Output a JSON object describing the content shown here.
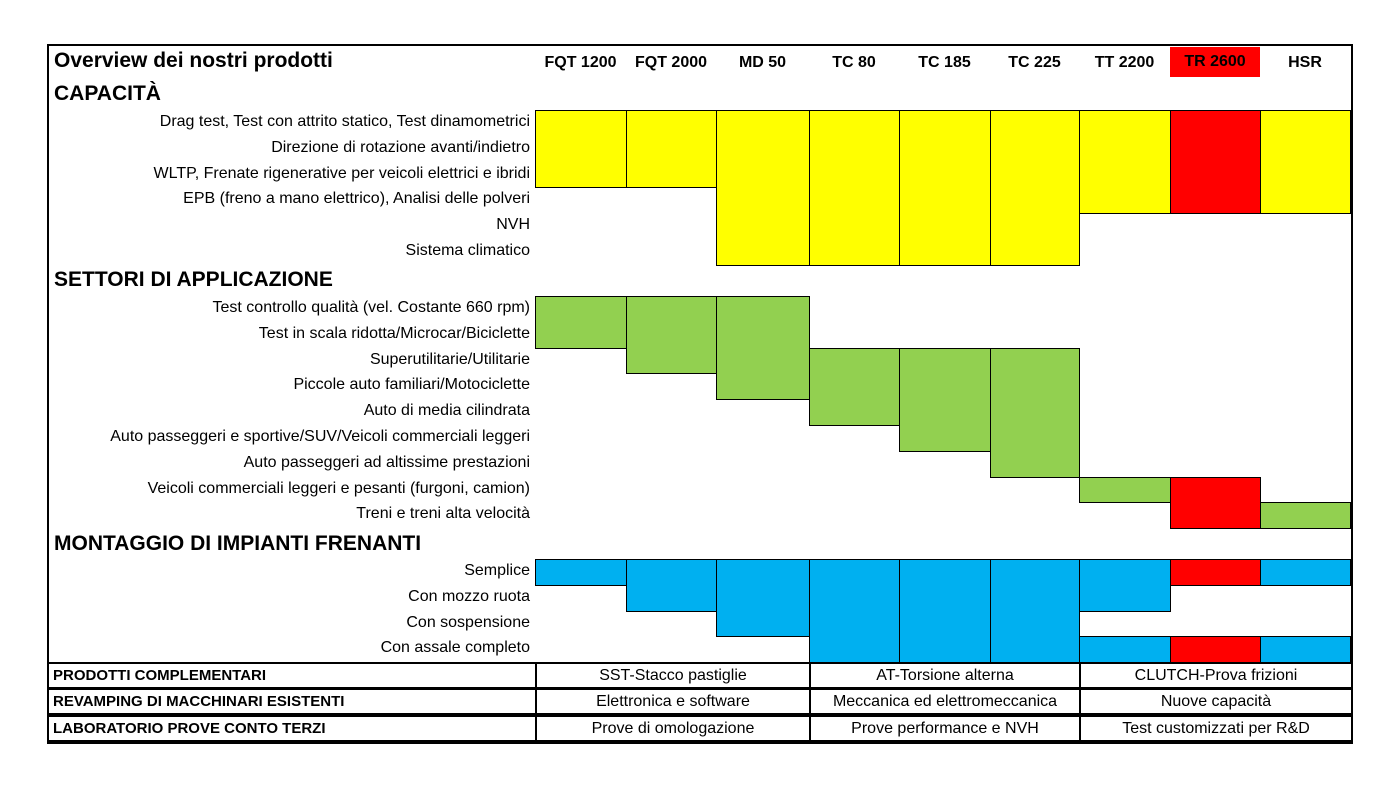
{
  "title": "Overview dei nostri prodotti",
  "colors": {
    "capacita": "#ffff00",
    "settori": "#92d050",
    "montaggio": "#00b0f0",
    "highlight": "#ff0000"
  },
  "products": [
    "FQT 1200",
    "FQT 2000",
    "MD 50",
    "TC 80",
    "TC 185",
    "TC 225",
    "TT 2200",
    "TR 2600",
    "HSR"
  ],
  "highlighted_product": 7,
  "sections": [
    {
      "title": "CAPACITÀ",
      "color": "capacita",
      "rows": [
        "Drag test, Test con attrito statico, Test dinamometrici",
        "Direzione di rotazione avanti/indietro",
        "WLTP, Frenate rigenerative per veicoli elettrici e ibridi",
        "EPB (freno a mano elettrico), Analisi delle polveri",
        "NVH",
        "Sistema climatico"
      ],
      "blocks": [
        [
          0,
          0,
          2
        ],
        [
          1,
          0,
          2
        ],
        [
          2,
          0,
          5
        ],
        [
          3,
          0,
          5
        ],
        [
          4,
          0,
          5
        ],
        [
          5,
          0,
          5
        ],
        [
          6,
          0,
          3
        ],
        [
          7,
          0,
          3
        ],
        [
          8,
          0,
          3
        ]
      ]
    },
    {
      "title": "SETTORI DI APPLICAZIONE",
      "color": "settori",
      "rows": [
        "Test controllo qualità (vel. Costante 660 rpm)",
        "Test in scala ridotta/Microcar/Biciclette",
        "Superutilitarie/Utilitarie",
        "Piccole auto familiari/Motociclette",
        "Auto di media cilindrata",
        "Auto passeggeri e sportive/SUV/Veicoli commerciali leggeri",
        "Auto passeggeri ad altissime prestazioni",
        "Veicoli commerciali leggeri e pesanti (furgoni, camion)",
        "Treni e treni alta velocità"
      ],
      "blocks": [
        [
          0,
          0,
          1
        ],
        [
          1,
          0,
          2
        ],
        [
          2,
          0,
          3
        ],
        [
          3,
          2,
          4
        ],
        [
          4,
          2,
          5
        ],
        [
          5,
          2,
          6
        ],
        [
          6,
          7,
          7
        ],
        [
          7,
          7,
          8
        ],
        [
          8,
          8,
          8
        ]
      ]
    },
    {
      "title": "MONTAGGIO DI IMPIANTI FRENANTI",
      "color": "montaggio",
      "rows": [
        "Semplice",
        "Con mozzo ruota",
        "Con sospensione",
        "Con assale completo"
      ],
      "blocks": [
        [
          0,
          0,
          0
        ],
        [
          1,
          0,
          1
        ],
        [
          2,
          0,
          2
        ],
        [
          3,
          0,
          3
        ],
        [
          4,
          0,
          3
        ],
        [
          5,
          0,
          3
        ],
        [
          6,
          0,
          1
        ],
        [
          7,
          0,
          0
        ],
        [
          8,
          0,
          0
        ],
        [
          6,
          3,
          3
        ],
        [
          7,
          3,
          3
        ],
        [
          8,
          3,
          3
        ]
      ]
    }
  ],
  "bottom": [
    {
      "label": "PRODOTTI COMPLEMENTARI",
      "cells": [
        "SST-Stacco pastiglie",
        "AT-Torsione alterna",
        "CLUTCH-Prova frizioni"
      ]
    },
    {
      "label": "REVAMPING DI MACCHINARI ESISTENTI",
      "cells": [
        "Elettronica e software",
        "Meccanica ed elettromeccanica",
        "Nuove capacità"
      ]
    },
    {
      "label": "LABORATORIO PROVE CONTO TERZI",
      "cells": [
        "Prove di omologazione",
        "Prove performance e NVH",
        "Test customizzati per R&D"
      ]
    }
  ]
}
